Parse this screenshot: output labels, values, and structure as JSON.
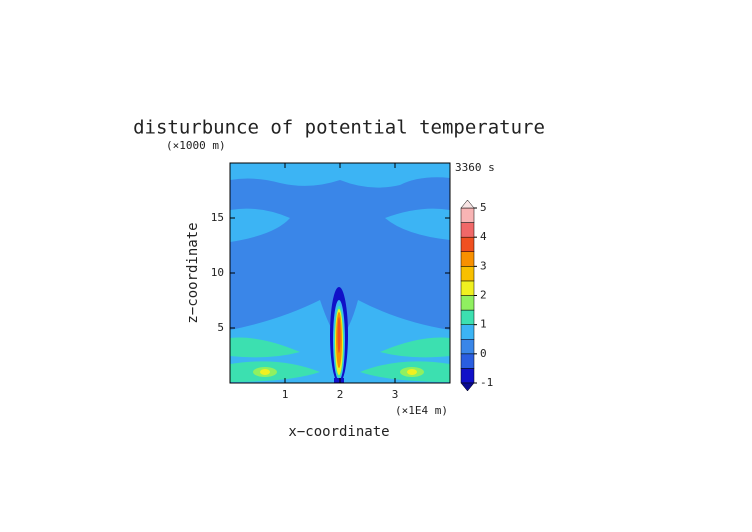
{
  "chart_data": {
    "type": "contour",
    "title": "disturbunce of potential temperature",
    "y_unit_label": "(×1000 m)",
    "x_unit_label": "(×1E4 m)",
    "time_label": "3360 s",
    "x_label": "x−coordinate",
    "y_label": "z−coordinate",
    "xlim": [
      0,
      4
    ],
    "ylim": [
      0,
      20
    ],
    "xticks": [
      1,
      2,
      3
    ],
    "yticks": [
      5,
      10,
      15
    ],
    "colorbar": {
      "levels": [
        -1,
        -0.5,
        0,
        0.5,
        1,
        1.5,
        2,
        2.5,
        3,
        3.5,
        4,
        4.5,
        5
      ],
      "colors": [
        "#1010c8",
        "#2a5ee0",
        "#3a86e8",
        "#3cb4f4",
        "#3ce0b0",
        "#90f060",
        "#f0f020",
        "#f8c000",
        "#f89000",
        "#f05020",
        "#f06868",
        "#f8b4b4"
      ],
      "under_color": "#0a0a90",
      "over_color": "#f8e4e4",
      "ticks": [
        -1,
        0,
        1,
        2,
        3,
        4,
        5
      ]
    }
  }
}
